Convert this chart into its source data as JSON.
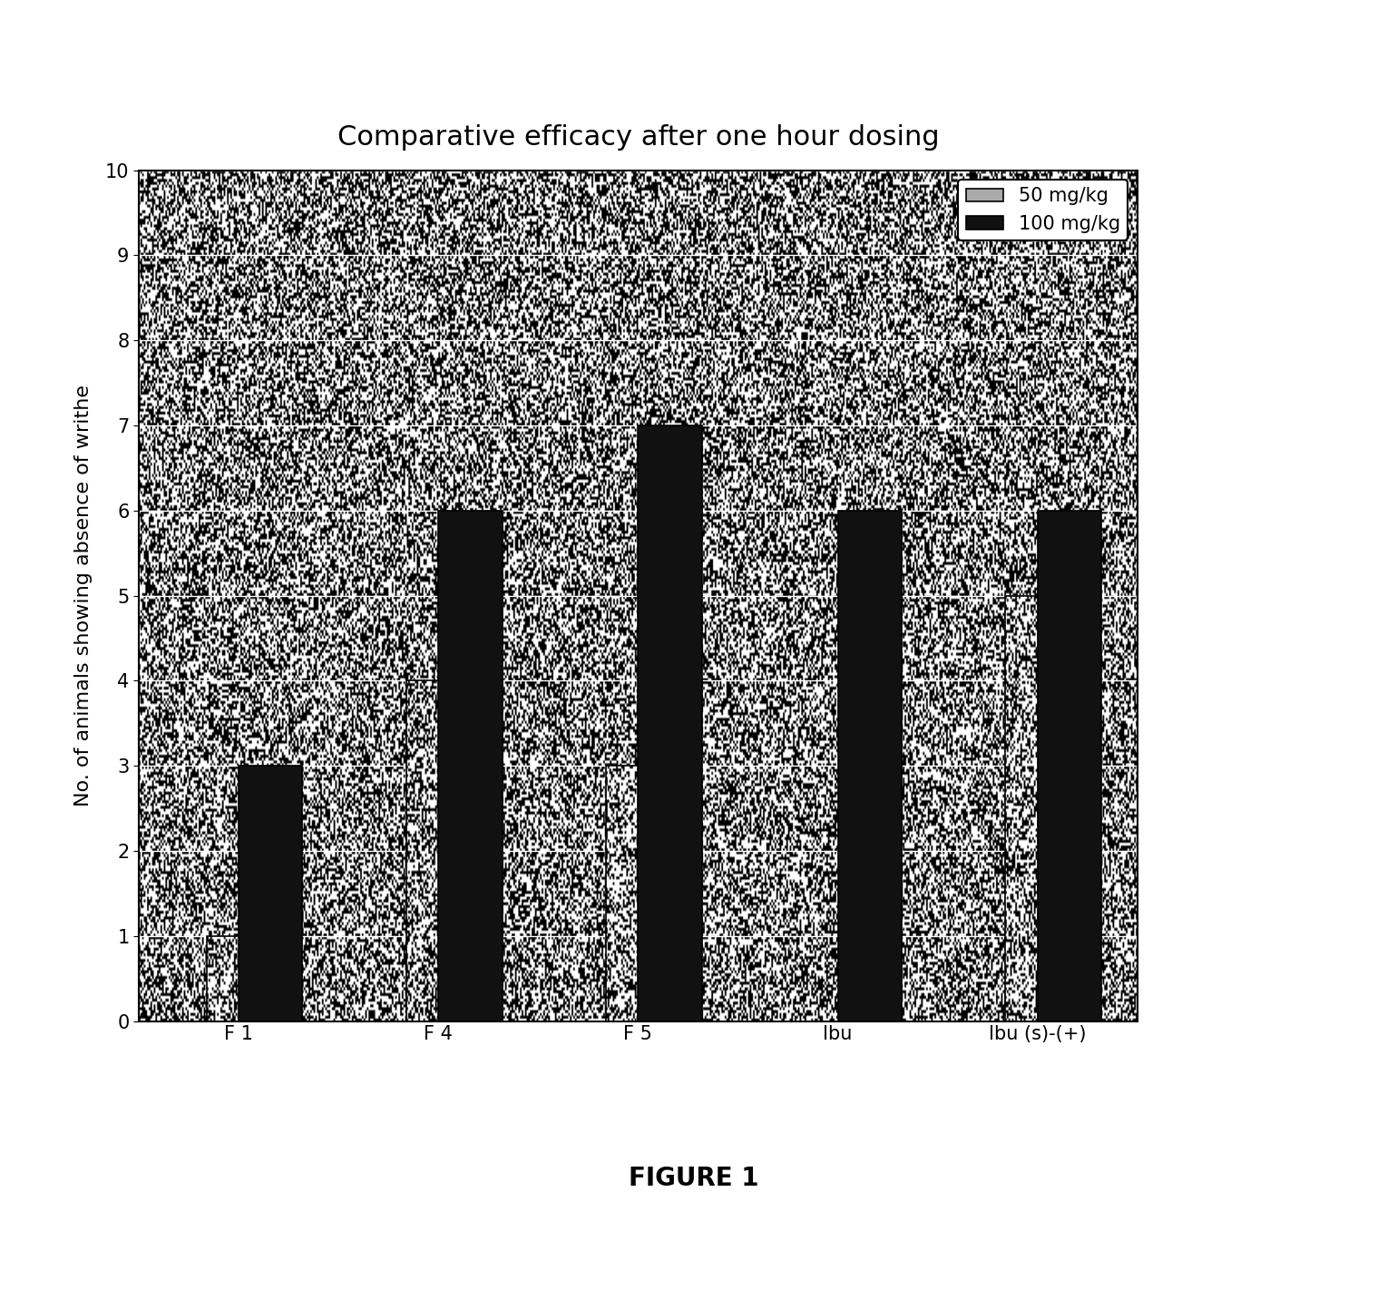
{
  "title": "Comparative efficacy after one hour dosing",
  "ylabel": "No. of animals showing absence of writhe",
  "categories": [
    "F 1",
    "F 4",
    "F 5",
    "Ibu",
    "Ibu (s)-(+)"
  ],
  "values_50": [
    1,
    4,
    3,
    0,
    5
  ],
  "values_100": [
    3,
    6,
    7,
    6,
    6
  ],
  "ylim": [
    0,
    10
  ],
  "yticks": [
    0,
    1,
    2,
    3,
    4,
    5,
    6,
    7,
    8,
    9,
    10
  ],
  "legend_50": "50 mg/kg",
  "legend_100": "100 mg/kg",
  "figure_label": "FIGURE 1",
  "title_fontsize": 22,
  "axis_label_fontsize": 16,
  "tick_fontsize": 15,
  "legend_fontsize": 15,
  "bar_width": 0.32,
  "background_color": "#ffffff",
  "bar_color_100": "#111111",
  "grid_color": "#ffffff"
}
